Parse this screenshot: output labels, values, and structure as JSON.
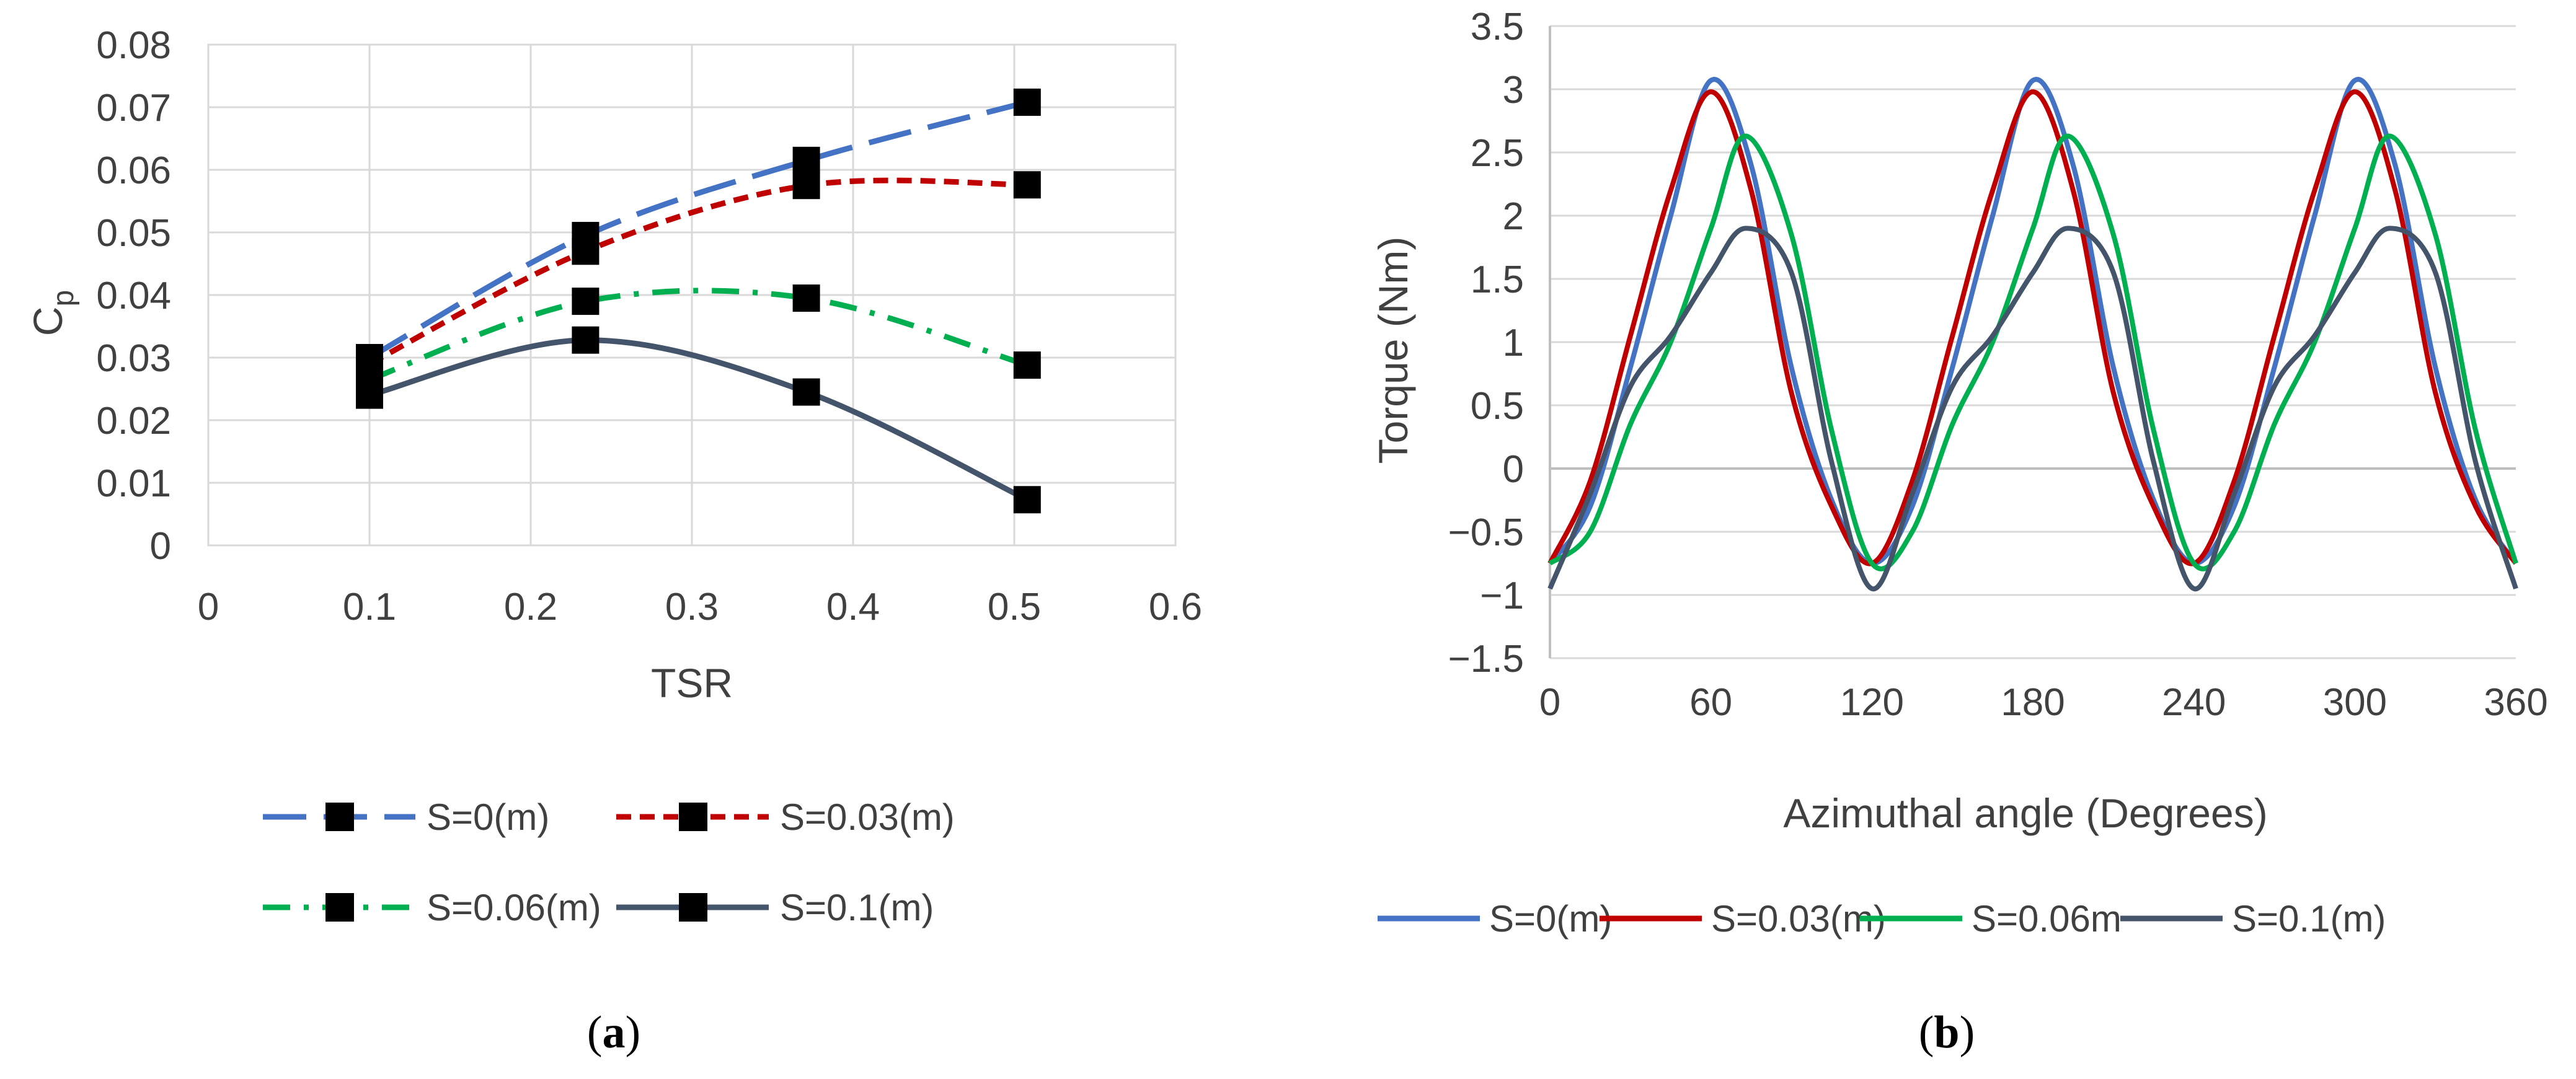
{
  "chart_data": [
    {
      "type": "line",
      "panel_label": "a",
      "title": "",
      "xlabel": "TSR",
      "ylabel_main": "C",
      "ylabel_sub": "p",
      "xlim": [
        0,
        0.6
      ],
      "ylim": [
        0,
        0.08
      ],
      "x_ticks": [
        "0",
        "0.1",
        "0.2",
        "0.3",
        "0.4",
        "0.5",
        "0.6"
      ],
      "y_ticks": [
        "0",
        "0.01",
        "0.02",
        "0.03",
        "0.04",
        "0.05",
        "0.06",
        "0.07",
        "0.08"
      ],
      "grid": "both",
      "markers": "square",
      "legend_position": "bottom",
      "series": [
        {
          "name": "S=0(m)",
          "color": "#4472C4",
          "dash": "long-dash",
          "x": [
            0.1,
            0.234,
            0.371,
            0.508
          ],
          "values": [
            0.03,
            0.0495,
            0.0615,
            0.0708
          ]
        },
        {
          "name": "S=0.03(m)",
          "color": "#C00000",
          "dash": "short-dash",
          "x": [
            0.1,
            0.234,
            0.371,
            0.508
          ],
          "values": [
            0.029,
            0.047,
            0.0575,
            0.0576
          ]
        },
        {
          "name": "S=0.06(m)",
          "color": "#00B050",
          "dash": "dash-dot",
          "x": [
            0.1,
            0.234,
            0.371,
            0.508
          ],
          "values": [
            0.0265,
            0.039,
            0.0395,
            0.0288
          ]
        },
        {
          "name": "S=0.1(m)",
          "color": "#44546A",
          "dash": "solid",
          "x": [
            0.1,
            0.234,
            0.371,
            0.508
          ],
          "values": [
            0.024,
            0.0328,
            0.0245,
            0.0073
          ]
        }
      ]
    },
    {
      "type": "line",
      "panel_label": "b",
      "title": "",
      "xlabel": "Azimuthal angle (Degrees)",
      "ylabel": "Torque (Nm)",
      "xlim": [
        0,
        360
      ],
      "ylim": [
        -1.5,
        3.5
      ],
      "x_ticks": [
        "0",
        "60",
        "120",
        "180",
        "240",
        "300",
        "360"
      ],
      "y_ticks": [
        "−1.5",
        "−1",
        "−0.5",
        "0",
        "0.5",
        "1",
        "1.5",
        "2",
        "2.5",
        "3",
        "3.5"
      ],
      "grid": "horizontal",
      "legend_position": "bottom",
      "series": [
        {
          "name": "S=0(m)",
          "color": "#4472C4",
          "x": [
            0,
            15,
            30,
            45,
            60,
            75,
            90,
            105,
            120
          ],
          "values": [
            -0.75,
            -0.3,
            0.8,
            2.0,
            3.07,
            2.4,
            0.8,
            -0.25,
            -0.75
          ]
        },
        {
          "name": "S=0.03(m)",
          "color": "#C00000",
          "x": [
            0,
            15,
            30,
            45,
            60,
            75,
            90,
            105,
            120
          ],
          "values": [
            -0.75,
            -0.1,
            1.05,
            2.2,
            2.98,
            2.2,
            0.6,
            -0.3,
            -0.75
          ]
        },
        {
          "name": "S=0.06m",
          "color": "#00B050",
          "x": [
            0,
            15,
            30,
            45,
            60,
            73,
            90,
            105,
            120
          ],
          "values": [
            -0.75,
            -0.5,
            0.35,
            1.0,
            1.9,
            2.63,
            1.85,
            0.3,
            -0.75
          ]
        },
        {
          "name": "S=0.1(m)",
          "color": "#44546A",
          "x": [
            0,
            15,
            30,
            45,
            60,
            73,
            90,
            105,
            120
          ],
          "values": [
            -0.95,
            -0.2,
            0.65,
            1.05,
            1.55,
            1.9,
            1.55,
            0.05,
            -0.95
          ]
        }
      ]
    }
  ]
}
